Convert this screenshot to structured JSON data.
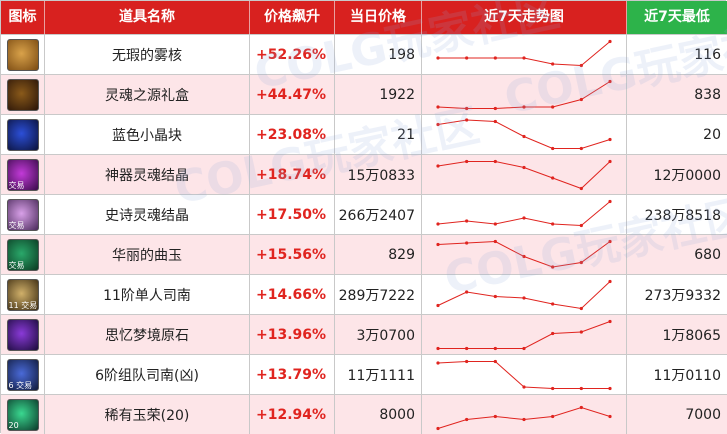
{
  "header": {
    "icon": "图标",
    "name": "道具名称",
    "pct": "价格飙升",
    "price": "当日价格",
    "trend": "近7天走势图",
    "low": "近7天最低"
  },
  "colors": {
    "header_red": "#d8211f",
    "header_green": "#2db34a",
    "row_alt": "#fde5e8",
    "pct": "#e0241f",
    "trend": "#e0241f"
  },
  "items": [
    {
      "icon": "mist-core-icon",
      "badge": "",
      "name": "无瑕的雾核",
      "pct": "+52.26%",
      "price": "198",
      "low": "116",
      "trend": [
        0.4,
        0.4,
        0.4,
        0.4,
        0.2,
        0.15,
        0.95
      ]
    },
    {
      "icon": "soul-box-icon",
      "badge": "",
      "name": "灵魂之源礼盒",
      "pct": "+44.47%",
      "price": "1922",
      "low": "838",
      "trend": [
        0.1,
        0.05,
        0.05,
        0.1,
        0.1,
        0.35,
        0.95
      ]
    },
    {
      "icon": "blue-crystal-icon",
      "badge": "",
      "name": "蓝色小晶块",
      "pct": "+23.08%",
      "price": "21",
      "low": "20",
      "trend": [
        0.85,
        1.0,
        0.95,
        0.45,
        0.05,
        0.05,
        0.35
      ]
    },
    {
      "icon": "artifact-soul-icon",
      "badge": "交易",
      "name": "神器灵魂结晶",
      "pct": "+18.74%",
      "price": "15万0833",
      "low": "12万0000",
      "trend": [
        0.8,
        0.95,
        0.95,
        0.75,
        0.4,
        0.05,
        0.95
      ]
    },
    {
      "icon": "epic-soul-icon",
      "badge": "交易",
      "name": "史诗灵魂结晶",
      "pct": "+17.50%",
      "price": "266万2407",
      "low": "238万8518",
      "trend": [
        0.2,
        0.3,
        0.2,
        0.4,
        0.2,
        0.15,
        0.95
      ]
    },
    {
      "icon": "jade-icon",
      "badge": "交易",
      "name": "华丽的曲玉",
      "pct": "+15.56%",
      "price": "829",
      "low": "680",
      "trend": [
        0.85,
        0.9,
        0.95,
        0.45,
        0.1,
        0.25,
        0.95
      ]
    },
    {
      "icon": "compass-11-icon",
      "badge": "11 交易",
      "name": "11阶单人司南",
      "pct": "+14.66%",
      "price": "289万7222",
      "low": "273万9332",
      "trend": [
        0.15,
        0.6,
        0.45,
        0.4,
        0.2,
        0.05,
        0.95
      ]
    },
    {
      "icon": "dream-stone-icon",
      "badge": "",
      "name": "思忆梦境原石",
      "pct": "+13.96%",
      "price": "3万0700",
      "low": "1万8065",
      "trend": [
        0.05,
        0.05,
        0.05,
        0.05,
        0.55,
        0.6,
        0.95
      ]
    },
    {
      "icon": "compass-6-icon",
      "badge": "6 交易",
      "name": "6阶组队司南(凶)",
      "pct": "+13.79%",
      "price": "11万1111",
      "low": "11万0110",
      "trend": [
        0.9,
        0.95,
        0.95,
        0.1,
        0.05,
        0.05,
        0.05
      ]
    },
    {
      "icon": "jade-honor-icon",
      "badge": "20",
      "name": "稀有玉荣(20)",
      "pct": "+12.94%",
      "price": "8000",
      "low": "7000",
      "trend": [
        0.05,
        0.35,
        0.45,
        0.35,
        0.45,
        0.75,
        0.45
      ]
    }
  ],
  "watermark": [
    "COLG玩家社区",
    "COLG玩家社区",
    "COLG玩家社区",
    "COLG玩家社区"
  ]
}
